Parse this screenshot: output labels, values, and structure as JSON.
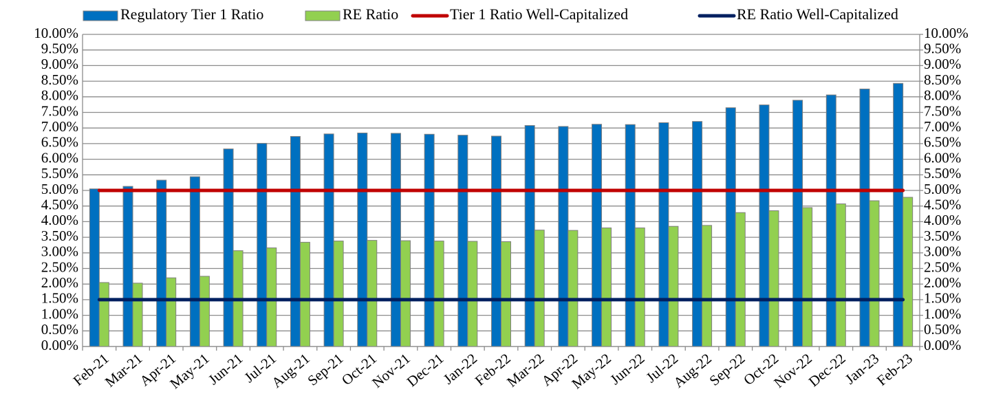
{
  "chart_data": {
    "type": "bar",
    "categories": [
      "Feb-21",
      "Mar-21",
      "Apr-21",
      "May-21",
      "Jun-21",
      "Jul-21",
      "Aug-21",
      "Sep-21",
      "Oct-21",
      "Nov-21",
      "Dec-21",
      "Jan-22",
      "Feb-22",
      "Mar-22",
      "Apr-22",
      "May-22",
      "Jun-22",
      "Jul-22",
      "Aug-22",
      "Sep-22",
      "Oct-22",
      "Nov-22",
      "Dec-22",
      "Jan-23",
      "Feb-23"
    ],
    "series": [
      {
        "name": "Regulatory Tier 1 Ratio",
        "type": "bar",
        "color": "#0070c0",
        "values": [
          5.05,
          5.13,
          5.33,
          5.44,
          6.33,
          6.51,
          6.73,
          6.81,
          6.84,
          6.83,
          6.8,
          6.77,
          6.74,
          7.08,
          7.05,
          7.12,
          7.11,
          7.17,
          7.21,
          7.65,
          7.74,
          7.89,
          8.06,
          8.25,
          8.43
        ]
      },
      {
        "name": "RE Ratio",
        "type": "bar",
        "color": "#92d050",
        "values": [
          2.05,
          2.03,
          2.2,
          2.25,
          3.07,
          3.16,
          3.34,
          3.38,
          3.4,
          3.39,
          3.38,
          3.37,
          3.36,
          3.73,
          3.72,
          3.8,
          3.8,
          3.85,
          3.88,
          4.29,
          4.35,
          4.45,
          4.57,
          4.67,
          4.78
        ]
      },
      {
        "name": "Tier 1 Ratio Well-Capitalized",
        "type": "line",
        "color": "#c00000",
        "values": [
          5,
          5,
          5,
          5,
          5,
          5,
          5,
          5,
          5,
          5,
          5,
          5,
          5,
          5,
          5,
          5,
          5,
          5,
          5,
          5,
          5,
          5,
          5,
          5,
          5
        ]
      },
      {
        "name": "RE Ratio Well-Capitalized",
        "type": "line",
        "color": "#002060",
        "values": [
          1.5,
          1.5,
          1.5,
          1.5,
          1.5,
          1.5,
          1.5,
          1.5,
          1.5,
          1.5,
          1.5,
          1.5,
          1.5,
          1.5,
          1.5,
          1.5,
          1.5,
          1.5,
          1.5,
          1.5,
          1.5,
          1.5,
          1.5,
          1.5,
          1.5
        ]
      }
    ],
    "ylim": [
      0,
      10
    ],
    "yticks": [
      {
        "value": 0,
        "label": "0.00%"
      },
      {
        "value": 0.5,
        "label": "0.50%"
      },
      {
        "value": 1,
        "label": "1.00%"
      },
      {
        "value": 1.5,
        "label": "1.50%"
      },
      {
        "value": 2,
        "label": "2.00%"
      },
      {
        "value": 2.5,
        "label": "2.50%"
      },
      {
        "value": 3,
        "label": "3.00%"
      },
      {
        "value": 3.5,
        "label": "3.50%"
      },
      {
        "value": 4,
        "label": "4.00%"
      },
      {
        "value": 4.5,
        "label": "4.50%"
      },
      {
        "value": 5,
        "label": "5.00%"
      },
      {
        "value": 5.5,
        "label": "5.50%"
      },
      {
        "value": 6,
        "label": "6.00%"
      },
      {
        "value": 6.5,
        "label": "6.50%"
      },
      {
        "value": 7,
        "label": "7.00%"
      },
      {
        "value": 7.5,
        "label": "7.50%"
      },
      {
        "value": 8,
        "label": "8.00%"
      },
      {
        "value": 8.5,
        "label": "8.50%"
      },
      {
        "value": 9,
        "label": "9.00%"
      },
      {
        "value": 9.5,
        "label": "9.50%"
      },
      {
        "value": 10,
        "label": "10.00%"
      }
    ],
    "y2lim": [
      0,
      10
    ],
    "y2ticks": [
      {
        "value": 0,
        "label": "0.00%"
      },
      {
        "value": 0.5,
        "label": "0.50%"
      },
      {
        "value": 1,
        "label": "1.00%"
      },
      {
        "value": 1.5,
        "label": "1.50%"
      },
      {
        "value": 2,
        "label": "2.00%"
      },
      {
        "value": 2.5,
        "label": "2.50%"
      },
      {
        "value": 3,
        "label": "3.00%"
      },
      {
        "value": 3.5,
        "label": "3.50%"
      },
      {
        "value": 4,
        "label": "4.00%"
      },
      {
        "value": 4.5,
        "label": "4.50%"
      },
      {
        "value": 5,
        "label": "5.00%"
      },
      {
        "value": 5.5,
        "label": "5.50%"
      },
      {
        "value": 6,
        "label": "6.00%"
      },
      {
        "value": 6.5,
        "label": "6.50%"
      },
      {
        "value": 7,
        "label": "7.00%"
      },
      {
        "value": 7.5,
        "label": "7.50%"
      },
      {
        "value": 8,
        "label": "8.00%"
      },
      {
        "value": 8.5,
        "label": "8.50%"
      },
      {
        "value": 9,
        "label": "9.00%"
      },
      {
        "value": 9.5,
        "label": "9.50%"
      },
      {
        "value": 10,
        "label": "10.00%"
      }
    ],
    "grid": true,
    "legend": "top"
  }
}
